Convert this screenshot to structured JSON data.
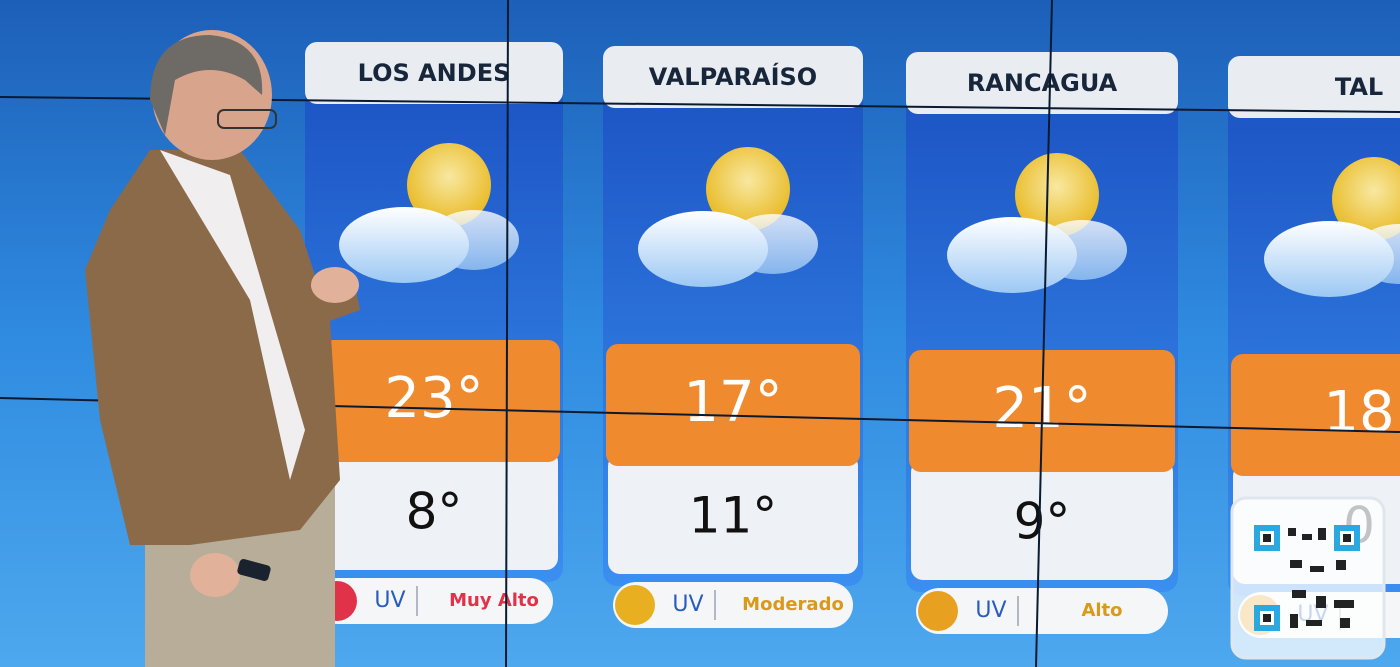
{
  "cards": [
    {
      "city": "LOS ANDES",
      "high": "23°",
      "low": "8°",
      "uv_label": "UV",
      "uv_level": "Muy Alto"
    },
    {
      "city": "VALPARAÍSO",
      "high": "17°",
      "low": "11°",
      "uv_label": "UV",
      "uv_level": "Moderado"
    },
    {
      "city": "RANCAGUA",
      "high": "21°",
      "low": "9°",
      "uv_label": "UV",
      "uv_level": "Alto"
    },
    {
      "city": "TAL",
      "high": "18",
      "low": "0",
      "uv_label": "UV"
    }
  ]
}
